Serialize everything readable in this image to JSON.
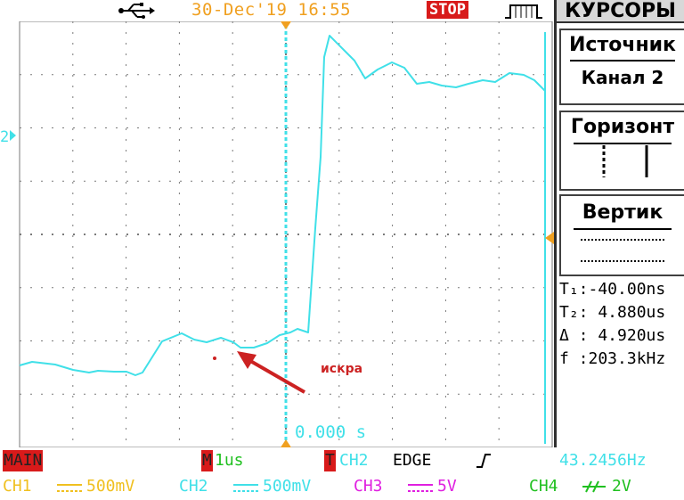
{
  "status_bar": {
    "usb_icon": "usb-icon",
    "datetime": "30-Dec'19 16:55",
    "run_state": "STOP",
    "trigger_icon": "trigger-pulse-icon"
  },
  "screen": {
    "channel_marker": "2",
    "time_offset": "0.000 s",
    "annotation": "искра",
    "trace_color": "#40e0e8",
    "grid_color": "#7a7a7a",
    "trigger_color": "#f0a020",
    "annotation_color": "#cc2222"
  },
  "menu": {
    "title": "КУРСОРЫ",
    "source_label": "Источник",
    "source_value": "Канал 2",
    "horizontal_label": "Горизонт",
    "vertical_label": "Вертик",
    "readouts": {
      "t1": "T₁:-40.00ns",
      "t2": "T₂: 4.880us",
      "delta": "Δ : 4.920us",
      "freq": "f :203.3kHz"
    }
  },
  "bottom": {
    "main": "MAIN",
    "timebase_tag": "M",
    "timebase": "1us",
    "trigger_tag": "T",
    "trigger_source": "CH2",
    "trigger_type": "EDGE",
    "trigger_slope_icon": "rising-edge-icon",
    "frequency": "43.2456Hz",
    "ch1_label": "CH1",
    "ch1_scale": "500mV",
    "ch2_label": "CH2",
    "ch2_scale": "500mV",
    "ch3_label": "CH3",
    "ch3_scale": "5V",
    "ch4_label": "CH4",
    "ch4_scale": "2V",
    "colors": {
      "ch1": "#f0c020",
      "ch2": "#40e0e8",
      "ch3": "#e020e0",
      "ch4": "#20c020",
      "red": "#d81a1a"
    }
  }
}
